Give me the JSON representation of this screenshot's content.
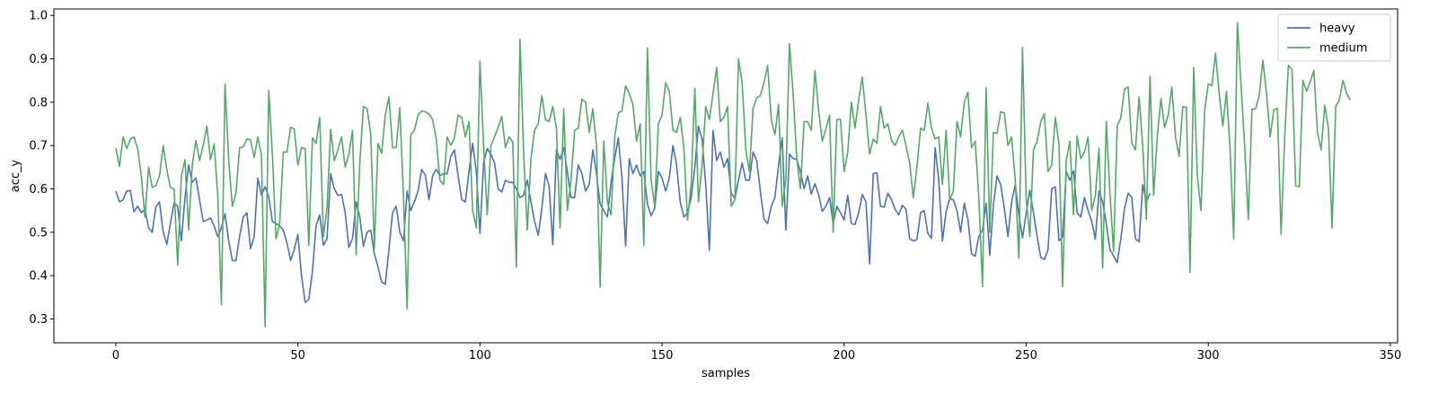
{
  "chart_data": {
    "type": "line",
    "title": "",
    "xlabel": "samples",
    "ylabel": "acc_y",
    "xlim": [
      -17,
      352
    ],
    "ylim": [
      0.245,
      1.015
    ],
    "xticks": [
      0,
      50,
      100,
      150,
      200,
      250,
      300,
      350
    ],
    "xtick_labels": [
      "0",
      "50",
      "100",
      "150",
      "200",
      "250",
      "300",
      "350"
    ],
    "yticks": [
      0.3,
      0.4,
      0.5,
      0.6,
      0.7,
      0.8,
      0.9,
      1.0
    ],
    "ytick_labels": [
      "0.3",
      "0.4",
      "0.5",
      "0.6",
      "0.7",
      "0.8",
      "0.9",
      "1.0"
    ],
    "grid": false,
    "legend_position": "top-right",
    "series": [
      {
        "name": "heavy",
        "color": "#4c72b0",
        "values": [
          0.595,
          0.57,
          0.575,
          0.595,
          0.596,
          0.547,
          0.56,
          0.545,
          0.553,
          0.51,
          0.5,
          0.558,
          0.57,
          0.5,
          0.472,
          0.52,
          0.568,
          0.56,
          0.48,
          0.58,
          0.655,
          0.615,
          0.625,
          0.575,
          0.525,
          0.528,
          0.533,
          0.515,
          0.49,
          0.51,
          0.543,
          0.48,
          0.435,
          0.434,
          0.49,
          0.535,
          0.545,
          0.462,
          0.49,
          0.625,
          0.585,
          0.605,
          0.582,
          0.525,
          0.52,
          0.515,
          0.505,
          0.475,
          0.435,
          0.46,
          0.495,
          0.4,
          0.338,
          0.345,
          0.41,
          0.515,
          0.54,
          0.47,
          0.485,
          0.635,
          0.6,
          0.585,
          0.587,
          0.545,
          0.465,
          0.485,
          0.57,
          0.535,
          0.468,
          0.5,
          0.505,
          0.45,
          0.42,
          0.385,
          0.38,
          0.46,
          0.545,
          0.56,
          0.5,
          0.48,
          0.595,
          0.55,
          0.57,
          0.595,
          0.645,
          0.632,
          0.575,
          0.63,
          0.645,
          0.63,
          0.635,
          0.635,
          0.675,
          0.69,
          0.63,
          0.575,
          0.57,
          0.64,
          0.705,
          0.64,
          0.497,
          0.66,
          0.693,
          0.68,
          0.66,
          0.6,
          0.593,
          0.62,
          0.615,
          0.615,
          0.6,
          0.58,
          0.585,
          0.62,
          0.57,
          0.525,
          0.493,
          0.555,
          0.636,
          0.605,
          0.471,
          0.69,
          0.668,
          0.695,
          0.64,
          0.58,
          0.58,
          0.655,
          0.635,
          0.595,
          0.61,
          0.69,
          0.635,
          0.565,
          0.55,
          0.535,
          0.615,
          0.67,
          0.718,
          0.625,
          0.468,
          0.67,
          0.635,
          0.655,
          0.63,
          0.64,
          0.565,
          0.538,
          0.555,
          0.64,
          0.625,
          0.595,
          0.625,
          0.7,
          0.655,
          0.57,
          0.535,
          0.545,
          0.58,
          0.65,
          0.745,
          0.715,
          0.61,
          0.458,
          0.735,
          0.665,
          0.685,
          0.65,
          0.67,
          0.59,
          0.578,
          0.62,
          0.66,
          0.62,
          0.62,
          0.685,
          0.665,
          0.595,
          0.53,
          0.52,
          0.56,
          0.58,
          0.655,
          0.718,
          0.505,
          0.68,
          0.67,
          0.668,
          0.64,
          0.6,
          0.63,
          0.588,
          0.612,
          0.587,
          0.548,
          0.56,
          0.58,
          0.52,
          0.56,
          0.545,
          0.528,
          0.585,
          0.52,
          0.518,
          0.545,
          0.587,
          0.57,
          0.427,
          0.635,
          0.637,
          0.56,
          0.558,
          0.59,
          0.575,
          0.553,
          0.54,
          0.562,
          0.553,
          0.485,
          0.48,
          0.483,
          0.545,
          0.55,
          0.497,
          0.486,
          0.695,
          0.62,
          0.48,
          0.547,
          0.578,
          0.575,
          0.55,
          0.5,
          0.567,
          0.53,
          0.45,
          0.445,
          0.49,
          0.505,
          0.567,
          0.447,
          0.563,
          0.63,
          0.61,
          0.555,
          0.49,
          0.57,
          0.61,
          0.54,
          0.487,
          0.545,
          0.597,
          0.545,
          0.49,
          0.442,
          0.437,
          0.46,
          0.6,
          0.605,
          0.48,
          0.49,
          0.64,
          0.62,
          0.642,
          0.545,
          0.535,
          0.58,
          0.55,
          0.525,
          0.484,
          0.595,
          0.57,
          0.52,
          0.46,
          0.445,
          0.43,
          0.485,
          0.555,
          0.59,
          0.58,
          0.485,
          0.478,
          0.61,
          0.57,
          0.59
        ]
      },
      {
        "name": "medium",
        "color": "#55a868",
        "values": [
          0.695,
          0.652,
          0.72,
          0.693,
          0.715,
          0.72,
          0.693,
          0.63,
          0.535,
          0.65,
          0.603,
          0.608,
          0.63,
          0.7,
          0.645,
          0.603,
          0.6,
          0.425,
          0.63,
          0.667,
          0.505,
          0.655,
          0.712,
          0.665,
          0.7,
          0.745,
          0.667,
          0.704,
          0.585,
          0.333,
          0.842,
          0.668,
          0.56,
          0.59,
          0.695,
          0.697,
          0.715,
          0.713,
          0.672,
          0.72,
          0.678,
          0.282,
          0.827,
          0.68,
          0.485,
          0.52,
          0.685,
          0.685,
          0.742,
          0.738,
          0.655,
          0.695,
          0.693,
          0.47,
          0.718,
          0.705,
          0.765,
          0.49,
          0.555,
          0.737,
          0.665,
          0.69,
          0.72,
          0.65,
          0.68,
          0.735,
          0.448,
          0.66,
          0.79,
          0.785,
          0.728,
          0.462,
          0.705,
          0.682,
          0.77,
          0.812,
          0.695,
          0.695,
          0.787,
          0.582,
          0.323,
          0.725,
          0.735,
          0.77,
          0.78,
          0.778,
          0.773,
          0.76,
          0.715,
          0.62,
          0.61,
          0.72,
          0.7,
          0.718,
          0.77,
          0.765,
          0.72,
          0.755,
          0.55,
          0.51,
          0.895,
          0.7,
          0.54,
          0.7,
          0.72,
          0.742,
          0.767,
          0.695,
          0.72,
          0.708,
          0.42,
          0.945,
          0.68,
          0.505,
          0.67,
          0.735,
          0.75,
          0.815,
          0.76,
          0.755,
          0.79,
          0.74,
          0.51,
          0.785,
          0.55,
          0.62,
          0.735,
          0.74,
          0.807,
          0.8,
          0.73,
          0.785,
          0.7,
          0.373,
          0.71,
          0.57,
          0.54,
          0.72,
          0.775,
          0.78,
          0.838,
          0.82,
          0.795,
          0.71,
          0.75,
          0.47,
          0.925,
          0.62,
          0.56,
          0.75,
          0.77,
          0.845,
          0.825,
          0.735,
          0.73,
          0.765,
          0.695,
          0.528,
          0.61,
          0.832,
          0.57,
          0.655,
          0.79,
          0.76,
          0.82,
          0.88,
          0.755,
          0.765,
          0.79,
          0.56,
          0.575,
          0.9,
          0.845,
          0.69,
          0.64,
          0.785,
          0.81,
          0.815,
          0.845,
          0.885,
          0.76,
          0.725,
          0.795,
          0.56,
          0.62,
          0.935,
          0.82,
          0.67,
          0.6,
          0.755,
          0.755,
          0.735,
          0.873,
          0.78,
          0.71,
          0.738,
          0.77,
          0.5,
          0.76,
          0.76,
          0.64,
          0.685,
          0.8,
          0.74,
          0.805,
          0.858,
          0.77,
          0.68,
          0.715,
          0.705,
          0.79,
          0.74,
          0.75,
          0.712,
          0.7,
          0.72,
          0.735,
          0.7,
          0.66,
          0.58,
          0.65,
          0.74,
          0.735,
          0.798,
          0.74,
          0.715,
          0.72,
          0.61,
          0.735,
          0.575,
          0.595,
          0.755,
          0.72,
          0.8,
          0.823,
          0.695,
          0.71,
          0.58,
          0.375,
          0.833,
          0.5,
          0.73,
          0.728,
          0.778,
          0.775,
          0.7,
          0.72,
          0.62,
          0.44,
          0.927,
          0.575,
          0.49,
          0.69,
          0.71,
          0.755,
          0.773,
          0.64,
          0.655,
          0.765,
          0.705,
          0.375,
          0.665,
          0.71,
          0.54,
          0.722,
          0.67,
          0.685,
          0.72,
          0.55,
          0.585,
          0.694,
          0.418,
          0.756,
          0.59,
          0.455,
          0.745,
          0.765,
          0.83,
          0.835,
          0.706,
          0.69,
          0.812,
          0.7,
          0.53,
          0.86,
          0.585,
          0.72,
          0.808,
          0.742,
          0.77,
          0.835,
          0.72,
          0.675,
          0.79,
          0.788,
          0.408,
          0.88,
          0.63,
          0.55,
          0.78,
          0.842,
          0.838,
          0.913,
          0.82,
          0.745,
          0.825,
          0.69,
          0.485,
          0.983,
          0.84,
          0.7,
          0.53,
          0.783,
          0.785,
          0.815,
          0.897,
          0.82,
          0.72,
          0.782,
          0.786,
          0.495,
          0.72,
          0.885,
          0.875,
          0.607,
          0.605,
          0.85,
          0.825,
          0.847,
          0.873,
          0.73,
          0.69,
          0.793,
          0.74,
          0.51,
          0.79,
          0.805,
          0.85,
          0.82,
          0.805
        ]
      }
    ]
  }
}
